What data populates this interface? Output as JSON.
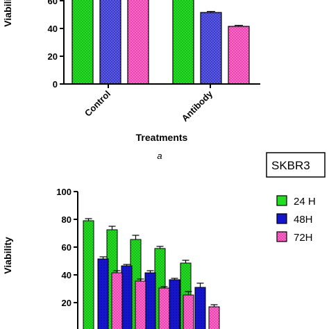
{
  "panel_label": "a",
  "badge": "SKBR3",
  "colors": {
    "green": "#22dd22",
    "blue": "#1010cc",
    "pink": "#ff55cc",
    "blue_top": "#6666ee"
  },
  "chart_data": [
    {
      "type": "bar",
      "ylabel": "Viability",
      "xlabel": "Treatments",
      "ylim": [
        0,
        100
      ],
      "yticks": [
        "0",
        "20",
        "40",
        "60"
      ],
      "categories": [
        "Control",
        "Antibody"
      ],
      "series": [
        {
          "values": [
            100,
            100
          ]
        },
        {
          "values": [
            100,
            51.5
          ]
        },
        {
          "values": [
            100,
            41.5
          ]
        }
      ]
    },
    {
      "type": "bar",
      "ylabel": "Viability",
      "ylim": [
        0,
        100
      ],
      "yticks": [
        "20",
        "40",
        "60",
        "80",
        "100"
      ],
      "legend": {
        "position": "right",
        "entries": [
          "24 H",
          "48H",
          "72H"
        ]
      },
      "series": [
        {
          "name": "24 H",
          "values": [
            79,
            72.5,
            65.5,
            59,
            48.5
          ],
          "errors": [
            1.5,
            2.5,
            3,
            1.5,
            2
          ]
        },
        {
          "name": "48H",
          "values": [
            51.5,
            46.5,
            41.5,
            36.5,
            31
          ],
          "errors": [
            1.5,
            1,
            1.5,
            1,
            3
          ]
        },
        {
          "name": "72H",
          "values": [
            41.5,
            35.5,
            30.5,
            25.5,
            17
          ],
          "errors": [
            1.5,
            1.5,
            1,
            2.5,
            1.5
          ]
        }
      ]
    }
  ]
}
